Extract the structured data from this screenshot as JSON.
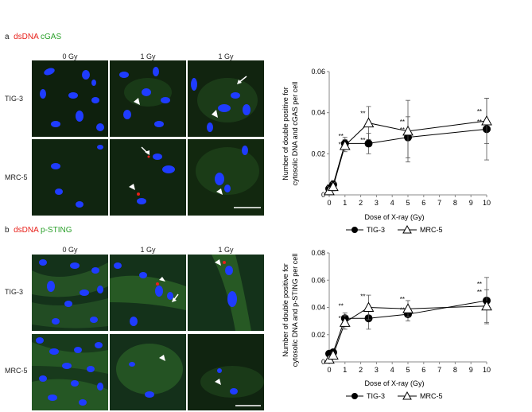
{
  "panel_a": {
    "letter": "a",
    "stain1": "dsDNA",
    "stain2": "cGAS",
    "col_labels": [
      "0 Gy",
      "1 Gy",
      "1 Gy"
    ],
    "row_labels": [
      "TIG-3",
      "MRC-5"
    ]
  },
  "panel_b": {
    "letter": "b",
    "stain1": "dsDNA",
    "stain2": "p-STING",
    "col_labels": [
      "0 Gy",
      "1 Gy",
      "1 Gy"
    ],
    "row_labels": [
      "TIG-3",
      "MRC-5"
    ]
  },
  "colors": {
    "dsdna_label": "#e8201a",
    "stain_label": "#2aa02a",
    "nucleus": "#1f3cff",
    "tile_bg": "#0c1a0c",
    "cytoplasm": "#2f6a2a"
  },
  "chart_data": [
    {
      "type": "line",
      "panel": "a",
      "ylabel_line1": "Number of double positive for",
      "ylabel_line2": "cytosolic DNA and cGAS per cell",
      "xlabel": "Dose of X-ray (Gy)",
      "xlim": [
        0,
        10
      ],
      "ylim": [
        0,
        0.06
      ],
      "xticks": [
        0,
        1,
        2,
        3,
        4,
        5,
        6,
        7,
        8,
        9,
        10
      ],
      "yticks": [
        "0",
        "0.02",
        "0.04",
        "0.06"
      ],
      "ytick_values": [
        0,
        0.02,
        0.04,
        0.06
      ],
      "series": [
        {
          "name": "TIG-3",
          "marker": "circle",
          "x": [
            0,
            0.25,
            1,
            2.5,
            5,
            10
          ],
          "y": [
            0.003,
            0.005,
            0.025,
            0.025,
            0.028,
            0.032
          ],
          "err": [
            0.002,
            0.002,
            0.003,
            0.005,
            0.01,
            0.015
          ]
        },
        {
          "name": "MRC-5",
          "marker": "triangle",
          "x": [
            0,
            0.25,
            1,
            2.5,
            5,
            10
          ],
          "y": [
            0.002,
            0.004,
            0.024,
            0.035,
            0.031,
            0.036
          ],
          "err": [
            0.002,
            0.002,
            0.003,
            0.008,
            0.015,
            0.011
          ]
        }
      ],
      "annotations": [
        {
          "text": "**",
          "x": 0.9,
          "y": 0.0275
        },
        {
          "text": "**",
          "x": 0.9,
          "y": 0.0235
        },
        {
          "text": "**",
          "x": 2.3,
          "y": 0.0385
        },
        {
          "text": "**",
          "x": 2.3,
          "y": 0.0255
        },
        {
          "text": "**",
          "x": 4.8,
          "y": 0.0345
        },
        {
          "text": "**",
          "x": 4.8,
          "y": 0.0305
        },
        {
          "text": "**",
          "x": 9.7,
          "y": 0.0395
        },
        {
          "text": "**",
          "x": 9.7,
          "y": 0.0345
        }
      ]
    },
    {
      "type": "line",
      "panel": "b",
      "ylabel_line1": "Number of double positive for",
      "ylabel_line2": "cytosolic DNA and p-STING per cell",
      "xlabel": "Dose of X-ray (Gy)",
      "xlim": [
        0,
        10
      ],
      "ylim": [
        0,
        0.08
      ],
      "xticks": [
        0,
        1,
        2,
        3,
        4,
        5,
        6,
        7,
        8,
        9,
        10
      ],
      "yticks": [
        "0",
        "0.02",
        "0.04",
        "0.06",
        "0.08"
      ],
      "ytick_values": [
        0,
        0.02,
        0.04,
        0.06,
        0.08
      ],
      "series": [
        {
          "name": "TIG-3",
          "marker": "circle",
          "x": [
            0,
            0.25,
            1,
            2.5,
            5,
            10
          ],
          "y": [
            0.006,
            0.007,
            0.032,
            0.032,
            0.035,
            0.045
          ],
          "err": [
            0.002,
            0.002,
            0.004,
            0.008,
            0.005,
            0.017
          ]
        },
        {
          "name": "MRC-5",
          "marker": "triangle",
          "x": [
            0,
            0.25,
            1,
            2.5,
            5,
            10
          ],
          "y": [
            0.002,
            0.005,
            0.029,
            0.04,
            0.039,
            0.041
          ],
          "err": [
            0.002,
            0.002,
            0.005,
            0.009,
            0.006,
            0.012
          ]
        }
      ],
      "annotations": [
        {
          "text": "**",
          "x": 0.9,
          "y": 0.0395
        },
        {
          "text": "**",
          "x": 0.9,
          "y": 0.0305
        },
        {
          "text": "**",
          "x": 2.3,
          "y": 0.0465
        },
        {
          "text": "**",
          "x": 4.8,
          "y": 0.0445
        },
        {
          "text": "**",
          "x": 4.8,
          "y": 0.0365
        },
        {
          "text": "**",
          "x": 9.7,
          "y": 0.0555
        },
        {
          "text": "**",
          "x": 9.7,
          "y": 0.0495
        }
      ]
    }
  ]
}
